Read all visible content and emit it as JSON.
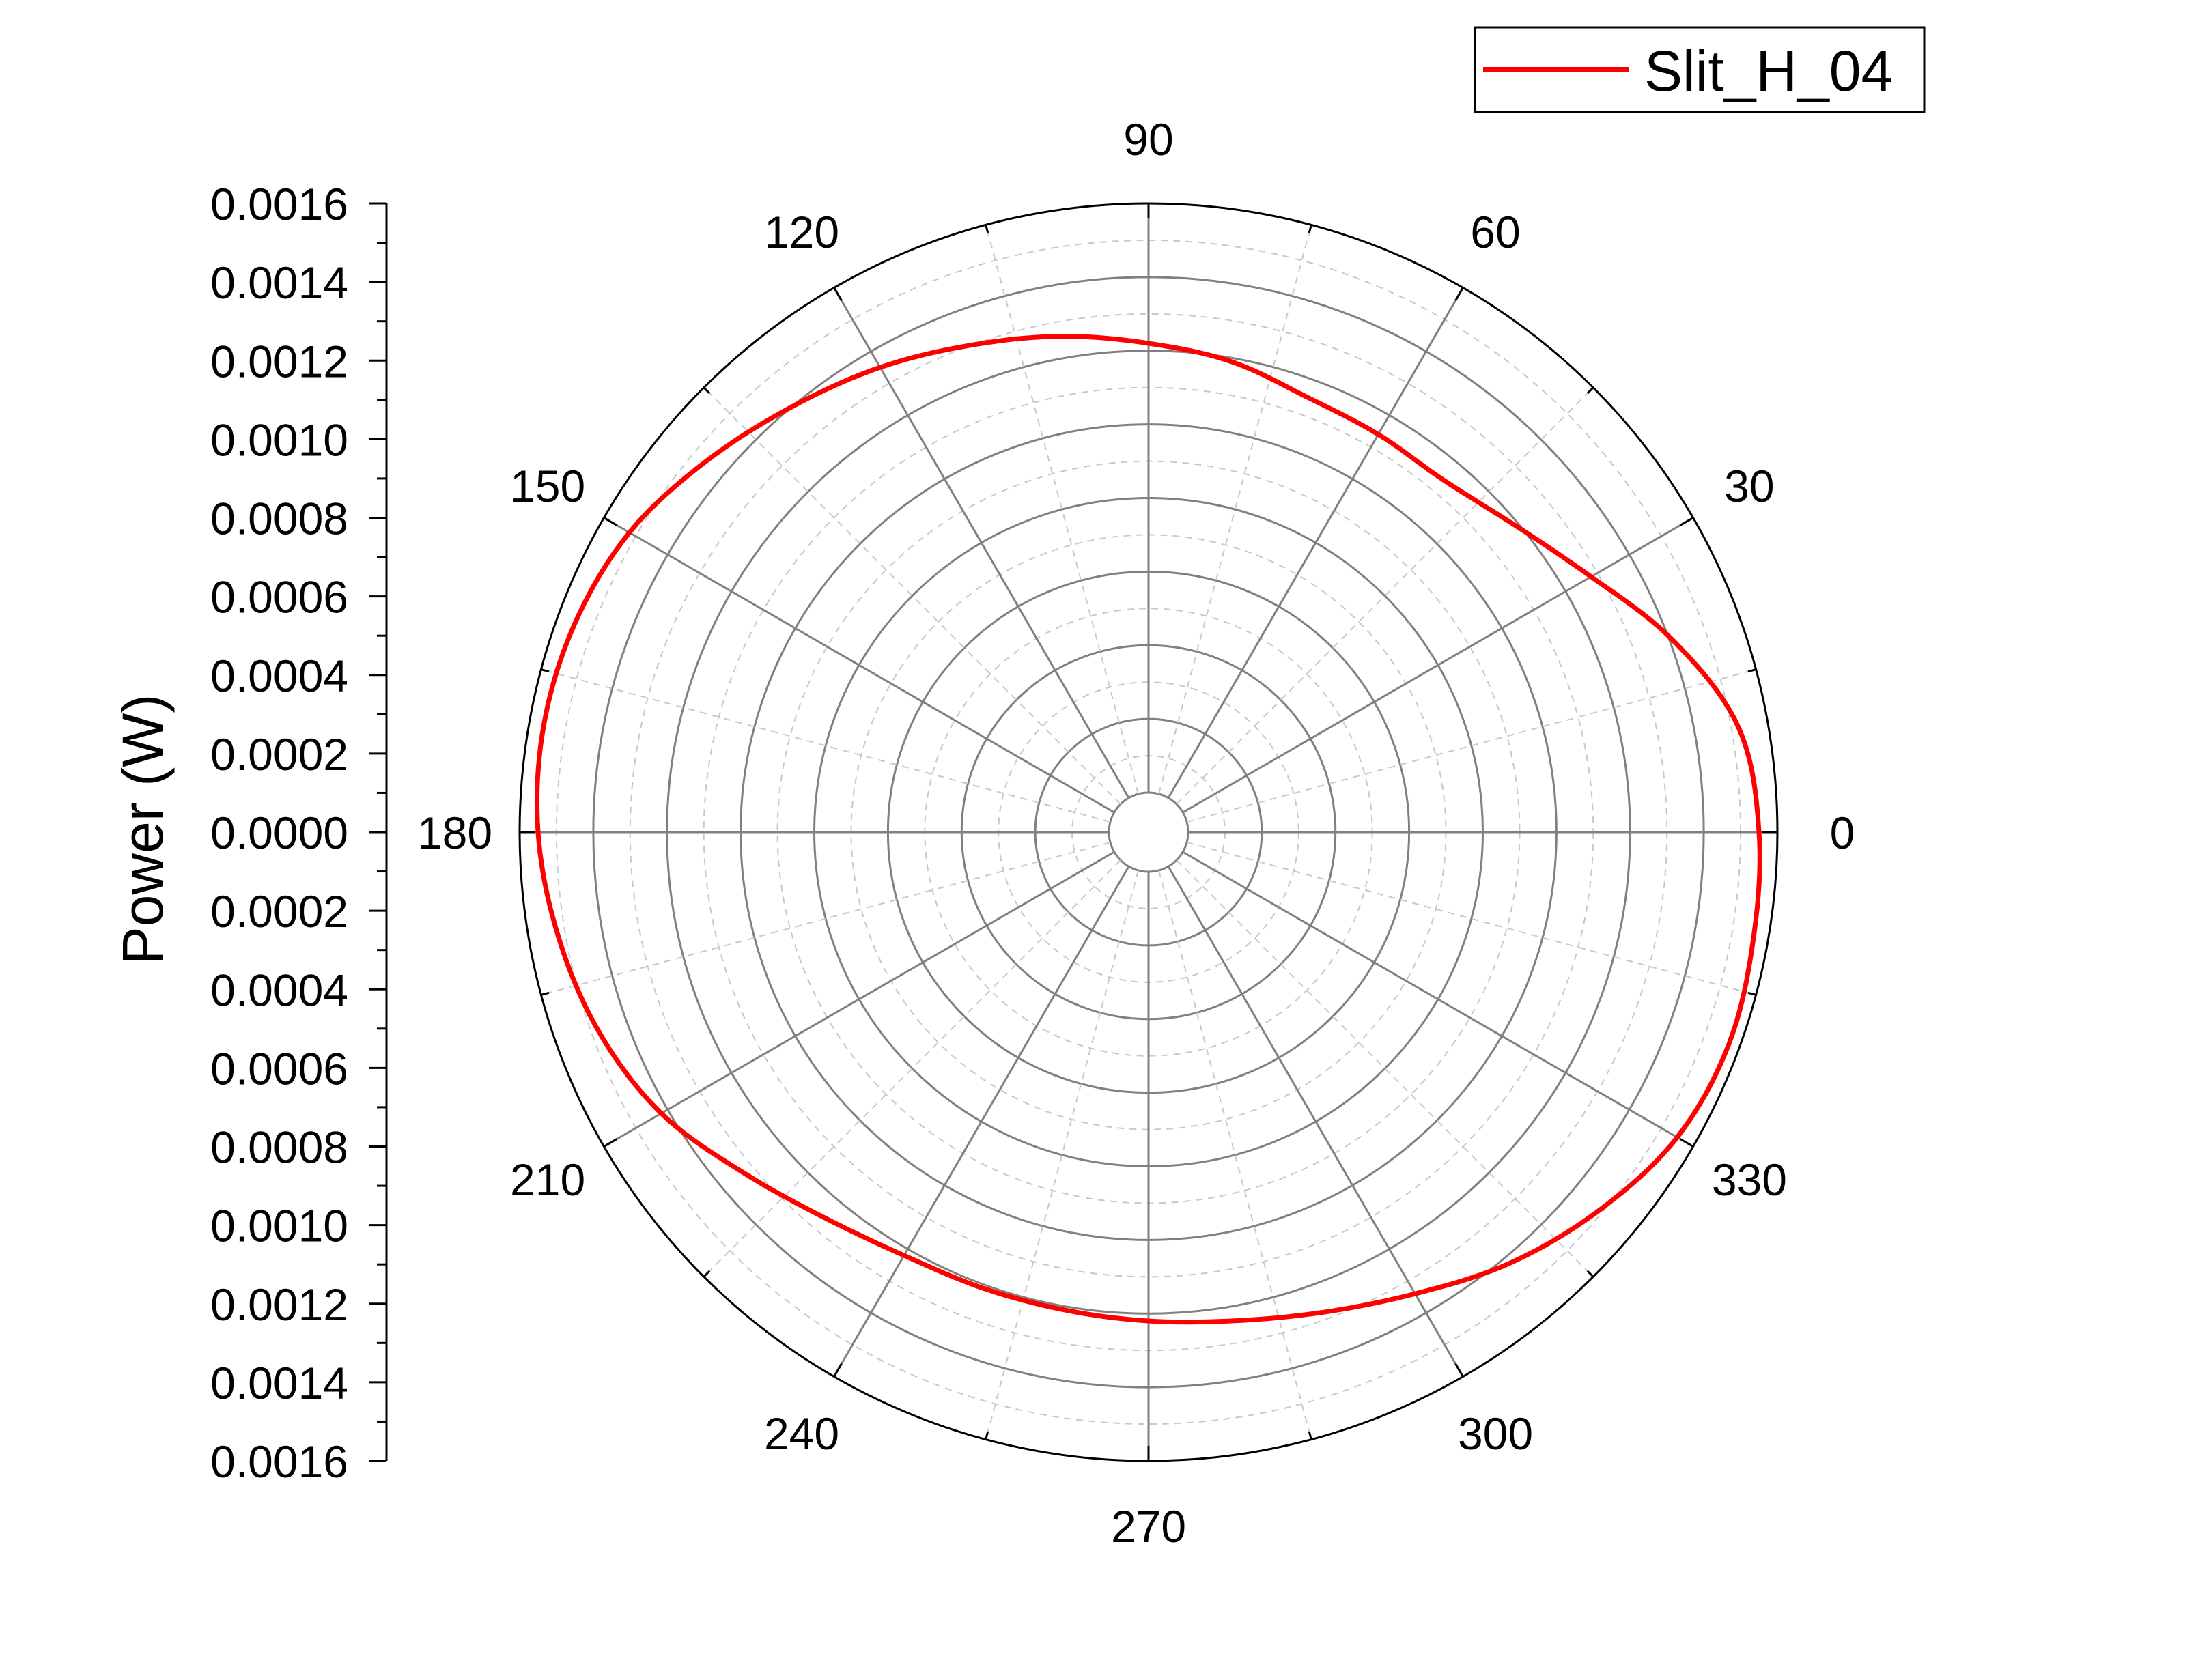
{
  "chart_data": {
    "type": "line",
    "polar": true,
    "angle_unit": "degrees",
    "ylabel": "Power (W)",
    "angular_ticks": [
      0,
      30,
      60,
      90,
      120,
      150,
      180,
      210,
      240,
      270,
      300,
      330
    ],
    "angular_tick_labels": [
      "0",
      "30",
      "60",
      "90",
      "120",
      "150",
      "180",
      "210",
      "240",
      "270",
      "300",
      "330"
    ],
    "radial_range": [
      0,
      0.0016
    ],
    "radial_ticks_top": [
      "0.0016",
      "0.0014",
      "0.0012",
      "0.0010",
      "0.0008",
      "0.0006",
      "0.0004",
      "0.0002"
    ],
    "radial_tick_center": "0.0000",
    "radial_ticks_bottom": [
      "0.0002",
      "0.0004",
      "0.0006",
      "0.0008",
      "0.0010",
      "0.0012",
      "0.0014",
      "0.0016"
    ],
    "radial_major_step": 0.0002,
    "grid": true,
    "legend_position": "top-right",
    "colors": {
      "series": "#ff0000",
      "major_grid": "#808080",
      "minor_grid": "#c8c8c8",
      "axis": "#000000"
    },
    "series": [
      {
        "name": "Slit_H_04",
        "theta": [
          0,
          10,
          20,
          30,
          40,
          50,
          60,
          70,
          80,
          90,
          100,
          110,
          120,
          130,
          140,
          150,
          160,
          170,
          180,
          190,
          200,
          210,
          220,
          230,
          240,
          250,
          260,
          270,
          280,
          290,
          300,
          310,
          320,
          330,
          340,
          350,
          360
        ],
        "r": [
          0.00155,
          0.00152,
          0.00141,
          0.00128,
          0.00119,
          0.00114,
          0.00114,
          0.00115,
          0.00119,
          0.00122,
          0.00126,
          0.0013,
          0.00135,
          0.0014,
          0.00146,
          0.00152,
          0.00155,
          0.00156,
          0.00155,
          0.00152,
          0.00148,
          0.00142,
          0.00133,
          0.00126,
          0.00122,
          0.00121,
          0.00121,
          0.00122,
          0.00124,
          0.00128,
          0.00134,
          0.00142,
          0.00149,
          0.00155,
          0.00157,
          0.00156,
          0.00155
        ]
      }
    ]
  }
}
